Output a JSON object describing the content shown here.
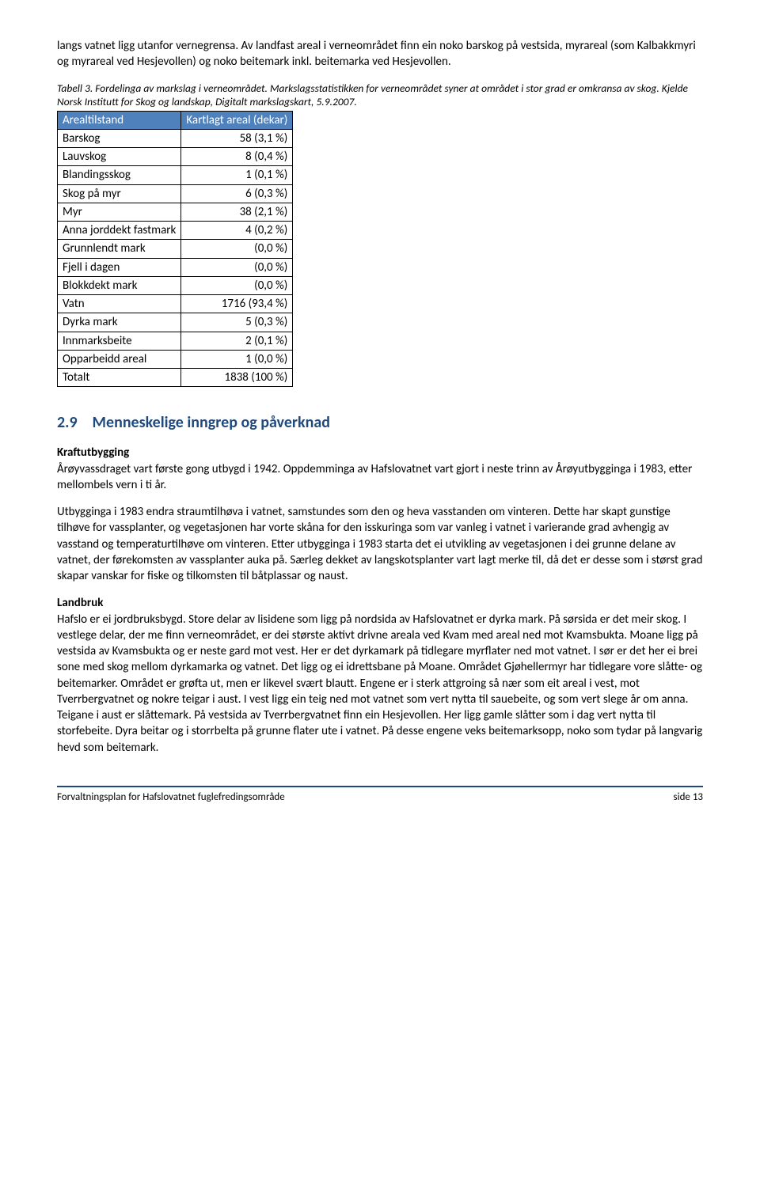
{
  "intro_para": "langs vatnet ligg utanfor vernegrensa. Av landfast areal i verneområdet finn ein noko barskog på vestsida, myrareal (som Kalbakkmyri og myrareal ved Hesjevollen) og noko beitemark inkl. beitemarka ved Hesjevollen.",
  "table_caption": "Tabell 3. Fordelinga av markslag i verneområdet. Markslagsstatistikken for verneområdet syner at området i stor grad er omkransa av skog. Kjelde Norsk Institutt for Skog og landskap, Digitalt markslagskart, 5.9.2007.",
  "table": {
    "header_col1": "Arealtilstand",
    "header_col2": "Kartlagt areal (dekar)",
    "header_bg": "#4f81bd",
    "header_fg": "#ffffff",
    "rows": [
      {
        "label": "Barskog",
        "value": "58 (3,1 %)"
      },
      {
        "label": "Lauvskog",
        "value": "8 (0,4 %)"
      },
      {
        "label": "Blandingsskog",
        "value": "1 (0,1 %)"
      },
      {
        "label": "Skog på myr",
        "value": "6 (0,3 %)"
      },
      {
        "label": "Myr",
        "value": "38 (2,1 %)"
      },
      {
        "label": "Anna jorddekt fastmark",
        "value": "4 (0,2 %)"
      },
      {
        "label": "Grunnlendt mark",
        "value": "(0,0 %)"
      },
      {
        "label": "Fjell i dagen",
        "value": "(0,0 %)"
      },
      {
        "label": "Blokkdekt mark",
        "value": "(0,0 %)"
      },
      {
        "label": "Vatn",
        "value": "1716 (93,4 %)"
      },
      {
        "label": "Dyrka mark",
        "value": "5 (0,3 %)"
      },
      {
        "label": "Innmarksbeite",
        "value": "2 (0,1 %)"
      },
      {
        "label": "Opparbeidd areal",
        "value": "1 (0,0 %)"
      },
      {
        "label": "Totalt",
        "value": "1838 (100 %)"
      }
    ]
  },
  "section": {
    "number": "2.9",
    "title": "Menneskelige inngrep og påverknad",
    "heading_color": "#1f497d"
  },
  "kraft_head": "Kraftutbygging",
  "kraft_p1": "Årøyvassdraget vart første gong utbygd i 1942. Oppdemminga av Hafslovatnet vart gjort i neste trinn av Årøyutbygginga i 1983, etter mellombels vern i ti år.",
  "kraft_p2": "Utbygginga i 1983 endra straumtilhøva i vatnet, samstundes som den og heva vasstanden om vinteren. Dette har skapt gunstige tilhøve for vassplanter, og vegetasjonen har vorte skåna for den isskuringa som var vanleg i vatnet i varierande grad avhengig av vasstand og temperaturtilhøve om vinteren. Etter utbygginga i 1983 starta det ei utvikling av vegetasjonen i dei grunne delane av vatnet, der førekomsten av vassplanter auka på. Særleg dekket av langskotsplanter vart lagt merke til, då det er desse som i størst grad skapar vanskar for fiske og tilkomsten til båtplassar og naust.",
  "land_head": "Landbruk",
  "land_p1": "Hafslo er ei jordbruksbygd. Store delar av lisidene som ligg på nordsida av Hafslovatnet er dyrka mark. På sørsida er det meir skog. I vestlege delar, der me finn verneområdet, er dei største aktivt drivne areala ved Kvam med areal ned mot Kvamsbukta. Moane ligg på vestsida av Kvamsbukta og er neste gard mot vest. Her er det dyrkamark på tidlegare myrflater ned mot vatnet. I sør er det her ei brei sone med skog mellom dyrkamarka og vatnet. Det ligg og ei idrettsbane på Moane. Området Gjøhellermyr har tidlegare vore slåtte- og beitemarker. Området er grøfta ut, men er likevel svært blautt. Engene er i sterk attgroing så nær som eit areal i vest, mot Tverrbergvatnet og nokre teigar i aust. I vest ligg ein teig ned mot vatnet som vert nytta til sauebeite, og som vert slege år om anna. Teigane i aust er slåttemark. På vestsida av Tverrbergvatnet finn ein Hesjevollen. Her ligg gamle slåtter som i dag vert nytta til storfebeite. Dyra beitar og i storrbelta på grunne flater ute i vatnet. På desse engene veks beitemarksopp, noko som tydar på langvarig hevd som beitemark.",
  "footer": {
    "left": "Forvaltningsplan for Hafslovatnet fuglefredingsområde",
    "right": "side 13",
    "line_color": "#1f497d"
  }
}
